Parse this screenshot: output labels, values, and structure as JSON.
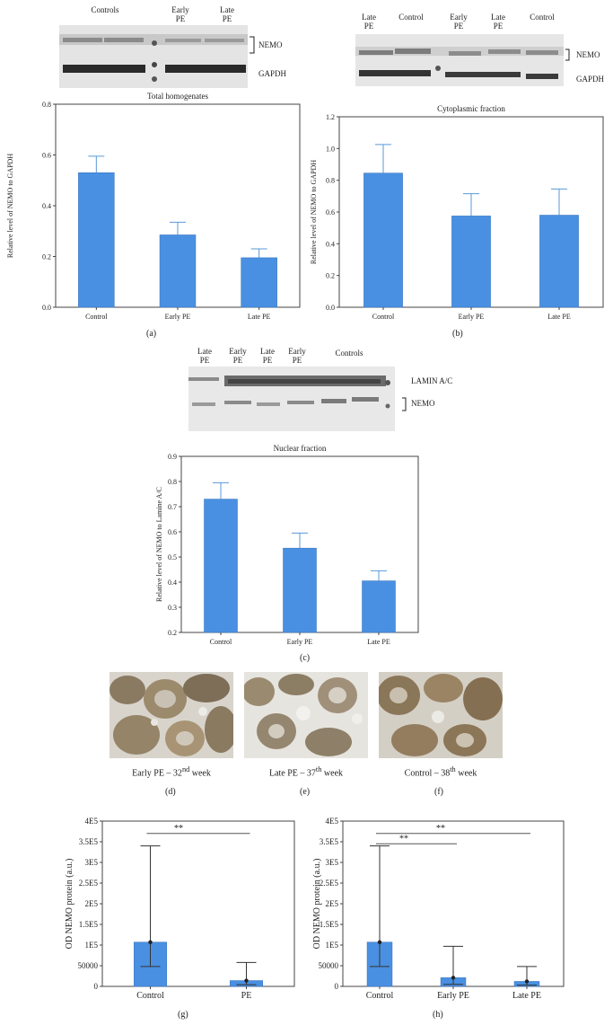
{
  "colors": {
    "bar": "#4a90e2",
    "bar_edge": "#3a78c0",
    "error": "#5a9ad8",
    "axis": "#444444",
    "text": "#222222",
    "sig_line": "#555555"
  },
  "blots": {
    "a": {
      "labels": [
        "Controls",
        "Early PE",
        "Late PE"
      ],
      "side": [
        "NEMO",
        "GAPDH"
      ]
    },
    "b": {
      "labels": [
        "Late PE",
        "Control",
        "Early PE",
        "Late PE",
        "Control"
      ],
      "side": [
        "NEMO",
        "GAPDH"
      ]
    },
    "c": {
      "labels": [
        "Late PE",
        "Early PE",
        "Late PE",
        "Early PE",
        "Controls"
      ],
      "side": [
        "LAMIN A/C",
        "NEMO"
      ]
    }
  },
  "micrographs": {
    "d": {
      "caption_pre": "Early PE – 32",
      "caption_sup": "nd",
      "caption_post": " week"
    },
    "e": {
      "caption_pre": "Late PE – 37",
      "caption_sup": "th",
      "caption_post": " week"
    },
    "f": {
      "caption_pre": "Control – 38",
      "caption_sup": "th",
      "caption_post": " week"
    }
  },
  "panel_letters": {
    "a": "(a)",
    "b": "(b)",
    "c": "(c)",
    "d": "(d)",
    "e": "(e)",
    "f": "(f)",
    "g": "(g)",
    "h": "(h)"
  },
  "chart_data": [
    {
      "id": "a",
      "type": "bar",
      "title": "Total homogenates",
      "ylabel": "Relative level of NEMO to GAPDH",
      "categories": [
        "Control",
        "Early PE",
        "Late PE"
      ],
      "values": [
        0.53,
        0.285,
        0.195
      ],
      "errors": [
        0.065,
        0.05,
        0.035
      ],
      "ylim": [
        0,
        0.8
      ],
      "yticks": [
        "0.0",
        "0.2",
        "0.4",
        "0.6",
        "0.8"
      ],
      "ytick_values": [
        0,
        0.2,
        0.4,
        0.6,
        0.8
      ]
    },
    {
      "id": "b",
      "type": "bar",
      "title": "Cytoplasmic fraction",
      "ylabel": "Relative level of NEMO to GAPDH",
      "categories": [
        "Control",
        "Early PE",
        "Late PE"
      ],
      "values": [
        0.845,
        0.575,
        0.58
      ],
      "errors": [
        0.18,
        0.14,
        0.165
      ],
      "ylim": [
        0,
        1.2
      ],
      "yticks": [
        "0.0",
        "0.2",
        "0.4",
        "0.6",
        "0.8",
        "1.0",
        "1.2"
      ],
      "ytick_values": [
        0,
        0.2,
        0.4,
        0.6,
        0.8,
        1.0,
        1.2
      ]
    },
    {
      "id": "c",
      "type": "bar",
      "title": "Nuclear fraction",
      "ylabel": "Relative level of NEMO to Lamine A/C",
      "categories": [
        "Control",
        "Early PE",
        "Late PE"
      ],
      "values": [
        0.73,
        0.535,
        0.405
      ],
      "errors": [
        0.065,
        0.06,
        0.04
      ],
      "ylim": [
        0.2,
        0.9
      ],
      "yticks": [
        "0.2",
        "0.3",
        "0.4",
        "0.5",
        "0.6",
        "0.7",
        "0.8",
        "0.9"
      ],
      "ytick_values": [
        0.2,
        0.3,
        0.4,
        0.5,
        0.6,
        0.7,
        0.8,
        0.9
      ]
    },
    {
      "id": "g",
      "type": "bar",
      "title": "",
      "ylabel": "OD NEMO protein (a.u.)",
      "categories": [
        "Control",
        "PE"
      ],
      "values": [
        107000,
        14000
      ],
      "err_low": [
        48000,
        4000
      ],
      "err_high": [
        340000,
        58000
      ],
      "ylim": [
        0,
        400000
      ],
      "yticks": [
        "0",
        "50000",
        "1E5",
        "1.5E5",
        "2E5",
        "2.5E5",
        "3E5",
        "3.5E5",
        "4E5"
      ],
      "ytick_values": [
        0,
        50000,
        100000,
        150000,
        200000,
        250000,
        300000,
        350000,
        400000
      ],
      "significance": [
        {
          "from": 0,
          "to": 1,
          "y": 370000,
          "label": "**"
        }
      ]
    },
    {
      "id": "h",
      "type": "bar",
      "title": "",
      "ylabel": "OD NEMO protein (a.u.)",
      "categories": [
        "Control",
        "Early PE",
        "Late PE"
      ],
      "values": [
        107000,
        21000,
        12000
      ],
      "err_low": [
        48000,
        5000,
        3000
      ],
      "err_high": [
        340000,
        97000,
        48000
      ],
      "ylim": [
        0,
        400000
      ],
      "yticks": [
        "0",
        "50000",
        "1E5",
        "1.5E5",
        "2E5",
        "2.5E5",
        "3E5",
        "3.5E5",
        "4E5"
      ],
      "ytick_values": [
        0,
        50000,
        100000,
        150000,
        200000,
        250000,
        300000,
        350000,
        400000
      ],
      "significance": [
        {
          "from": 0,
          "to": 1,
          "y": 345000,
          "label": "**"
        },
        {
          "from": 0,
          "to": 2,
          "y": 370000,
          "label": "**"
        }
      ]
    }
  ]
}
